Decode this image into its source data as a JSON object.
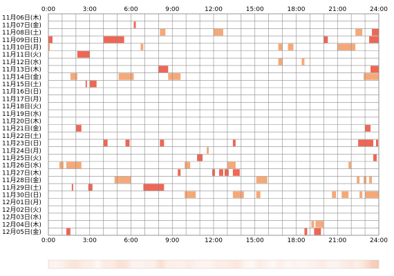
{
  "chart_data": {
    "type": "heatmap",
    "title": "",
    "xlabel": "",
    "ylabel": "",
    "x_range_hours": [
      0,
      24
    ],
    "x_tick_labels": [
      "0:00",
      "3:00",
      "6:00",
      "9:00",
      "12:00",
      "15:00",
      "18:00",
      "21:00",
      "24:00"
    ],
    "grid": true,
    "colors": {
      "light": "#f5a878",
      "dark": "#ee6655",
      "grid": "#888888",
      "strip_tint": "#f2a883"
    },
    "rows": [
      {
        "label": "11月06日(木)",
        "blocks": []
      },
      {
        "label": "11月07日(金)",
        "blocks": [
          {
            "start": 6.2,
            "end": 6.35,
            "level": 2
          }
        ]
      },
      {
        "label": "11月08日(土)",
        "blocks": [
          {
            "start": 8.1,
            "end": 8.5,
            "level": 1
          },
          {
            "start": 12.0,
            "end": 12.7,
            "level": 1
          },
          {
            "start": 22.3,
            "end": 22.8,
            "level": 1
          },
          {
            "start": 23.5,
            "end": 24.0,
            "level": 2
          }
        ]
      },
      {
        "label": "11月09日(日)",
        "blocks": [
          {
            "start": 0.0,
            "end": 0.3,
            "level": 2
          },
          {
            "start": 4.0,
            "end": 5.5,
            "level": 2
          },
          {
            "start": 20.0,
            "end": 20.3,
            "level": 2
          },
          {
            "start": 23.3,
            "end": 24.0,
            "level": 2
          }
        ]
      },
      {
        "label": "11月10日(月)",
        "blocks": [
          {
            "start": 0.0,
            "end": 0.1,
            "level": 1
          },
          {
            "start": 6.7,
            "end": 6.9,
            "level": 1
          },
          {
            "start": 16.7,
            "end": 17.0,
            "level": 1
          },
          {
            "start": 17.4,
            "end": 17.8,
            "level": 1
          },
          {
            "start": 21.0,
            "end": 22.3,
            "level": 1
          }
        ]
      },
      {
        "label": "11月11日(火)",
        "blocks": [
          {
            "start": 2.1,
            "end": 3.0,
            "level": 2
          }
        ]
      },
      {
        "label": "11月12日(水)",
        "blocks": [
          {
            "start": 16.7,
            "end": 17.0,
            "level": 1
          },
          {
            "start": 18.4,
            "end": 18.6,
            "level": 1
          }
        ]
      },
      {
        "label": "11月13日(木)",
        "blocks": [
          {
            "start": 8.0,
            "end": 8.7,
            "level": 2
          },
          {
            "start": 23.4,
            "end": 24.0,
            "level": 2
          }
        ]
      },
      {
        "label": "11月14日(金)",
        "blocks": [
          {
            "start": 1.6,
            "end": 2.1,
            "level": 1
          },
          {
            "start": 5.1,
            "end": 6.2,
            "level": 1
          },
          {
            "start": 8.7,
            "end": 9.6,
            "level": 1
          },
          {
            "start": 22.9,
            "end": 24.0,
            "level": 1
          }
        ]
      },
      {
        "label": "11月15日(土)",
        "blocks": [
          {
            "start": 2.7,
            "end": 2.8,
            "level": 2
          },
          {
            "start": 3.0,
            "end": 3.5,
            "level": 2
          }
        ]
      },
      {
        "label": "11月16日(日)",
        "blocks": []
      },
      {
        "label": "11月17日(月)",
        "blocks": []
      },
      {
        "label": "11月18日(火)",
        "blocks": []
      },
      {
        "label": "11月19日(水)",
        "blocks": []
      },
      {
        "label": "11月20日(木)",
        "blocks": []
      },
      {
        "label": "11月21日(金)",
        "blocks": [
          {
            "start": 2.0,
            "end": 2.4,
            "level": 2
          },
          {
            "start": 23.0,
            "end": 23.4,
            "level": 2
          }
        ]
      },
      {
        "label": "11月22日(土)",
        "blocks": []
      },
      {
        "label": "11月23日(日)",
        "blocks": [
          {
            "start": 4.0,
            "end": 4.3,
            "level": 2
          },
          {
            "start": 5.6,
            "end": 5.9,
            "level": 2
          },
          {
            "start": 8.1,
            "end": 8.4,
            "level": 2
          },
          {
            "start": 13.4,
            "end": 13.6,
            "level": 2
          },
          {
            "start": 22.5,
            "end": 23.6,
            "level": 2
          },
          {
            "start": 23.8,
            "end": 23.95,
            "level": 2
          }
        ]
      },
      {
        "label": "11月24日(月)",
        "blocks": [
          {
            "start": 11.5,
            "end": 11.65,
            "level": 1
          }
        ]
      },
      {
        "label": "11月25日(火)",
        "blocks": [
          {
            "start": 10.8,
            "end": 11.2,
            "level": 2
          },
          {
            "start": 23.6,
            "end": 23.85,
            "level": 2
          }
        ]
      },
      {
        "label": "11月26日(水)",
        "blocks": [
          {
            "start": 0.8,
            "end": 1.1,
            "level": 1
          },
          {
            "start": 1.3,
            "end": 2.4,
            "level": 1
          },
          {
            "start": 9.9,
            "end": 10.3,
            "level": 1
          },
          {
            "start": 13.0,
            "end": 13.6,
            "level": 1
          },
          {
            "start": 21.8,
            "end": 22.0,
            "level": 1
          }
        ]
      },
      {
        "label": "11月27日(木)",
        "blocks": [
          {
            "start": 9.4,
            "end": 9.6,
            "level": 2
          },
          {
            "start": 11.9,
            "end": 12.1,
            "level": 2
          },
          {
            "start": 12.4,
            "end": 12.7,
            "level": 2
          },
          {
            "start": 12.8,
            "end": 13.1,
            "level": 2
          },
          {
            "start": 13.4,
            "end": 13.9,
            "level": 2
          }
        ]
      },
      {
        "label": "11月28日(金)",
        "blocks": [
          {
            "start": 4.8,
            "end": 5.2,
            "level": 1
          },
          {
            "start": 5.2,
            "end": 6.0,
            "level": 1
          },
          {
            "start": 15.1,
            "end": 15.9,
            "level": 1
          },
          {
            "start": 22.4,
            "end": 22.6,
            "level": 1
          },
          {
            "start": 22.9,
            "end": 23.1,
            "level": 1
          },
          {
            "start": 23.3,
            "end": 23.5,
            "level": 1
          }
        ]
      },
      {
        "label": "11月29日(土)",
        "blocks": [
          {
            "start": 1.7,
            "end": 1.8,
            "level": 2
          },
          {
            "start": 2.9,
            "end": 3.2,
            "level": 2
          },
          {
            "start": 6.9,
            "end": 8.4,
            "level": 2
          }
        ]
      },
      {
        "label": "11月30日(日)",
        "blocks": [
          {
            "start": 9.9,
            "end": 10.7,
            "level": 1
          },
          {
            "start": 13.4,
            "end": 14.2,
            "level": 1
          },
          {
            "start": 15.1,
            "end": 15.4,
            "level": 1
          },
          {
            "start": 20.6,
            "end": 20.9,
            "level": 1
          },
          {
            "start": 21.3,
            "end": 21.8,
            "level": 1
          },
          {
            "start": 22.6,
            "end": 22.8,
            "level": 1
          },
          {
            "start": 23.0,
            "end": 24.0,
            "level": 1
          }
        ]
      },
      {
        "label": "12月01日(月)",
        "blocks": []
      },
      {
        "label": "12月02日(火)",
        "blocks": []
      },
      {
        "label": "12月03日(水)",
        "blocks": []
      },
      {
        "label": "12月04日(木)",
        "blocks": [
          {
            "start": 19.1,
            "end": 19.3,
            "level": 1
          },
          {
            "start": 19.4,
            "end": 20.0,
            "level": 1
          }
        ]
      },
      {
        "label": "12月05日(金)",
        "blocks": [
          {
            "start": 1.3,
            "end": 1.6,
            "level": 2
          },
          {
            "start": 18.6,
            "end": 18.8,
            "level": 2
          },
          {
            "start": 19.3,
            "end": 19.8,
            "level": 2
          }
        ]
      }
    ]
  }
}
